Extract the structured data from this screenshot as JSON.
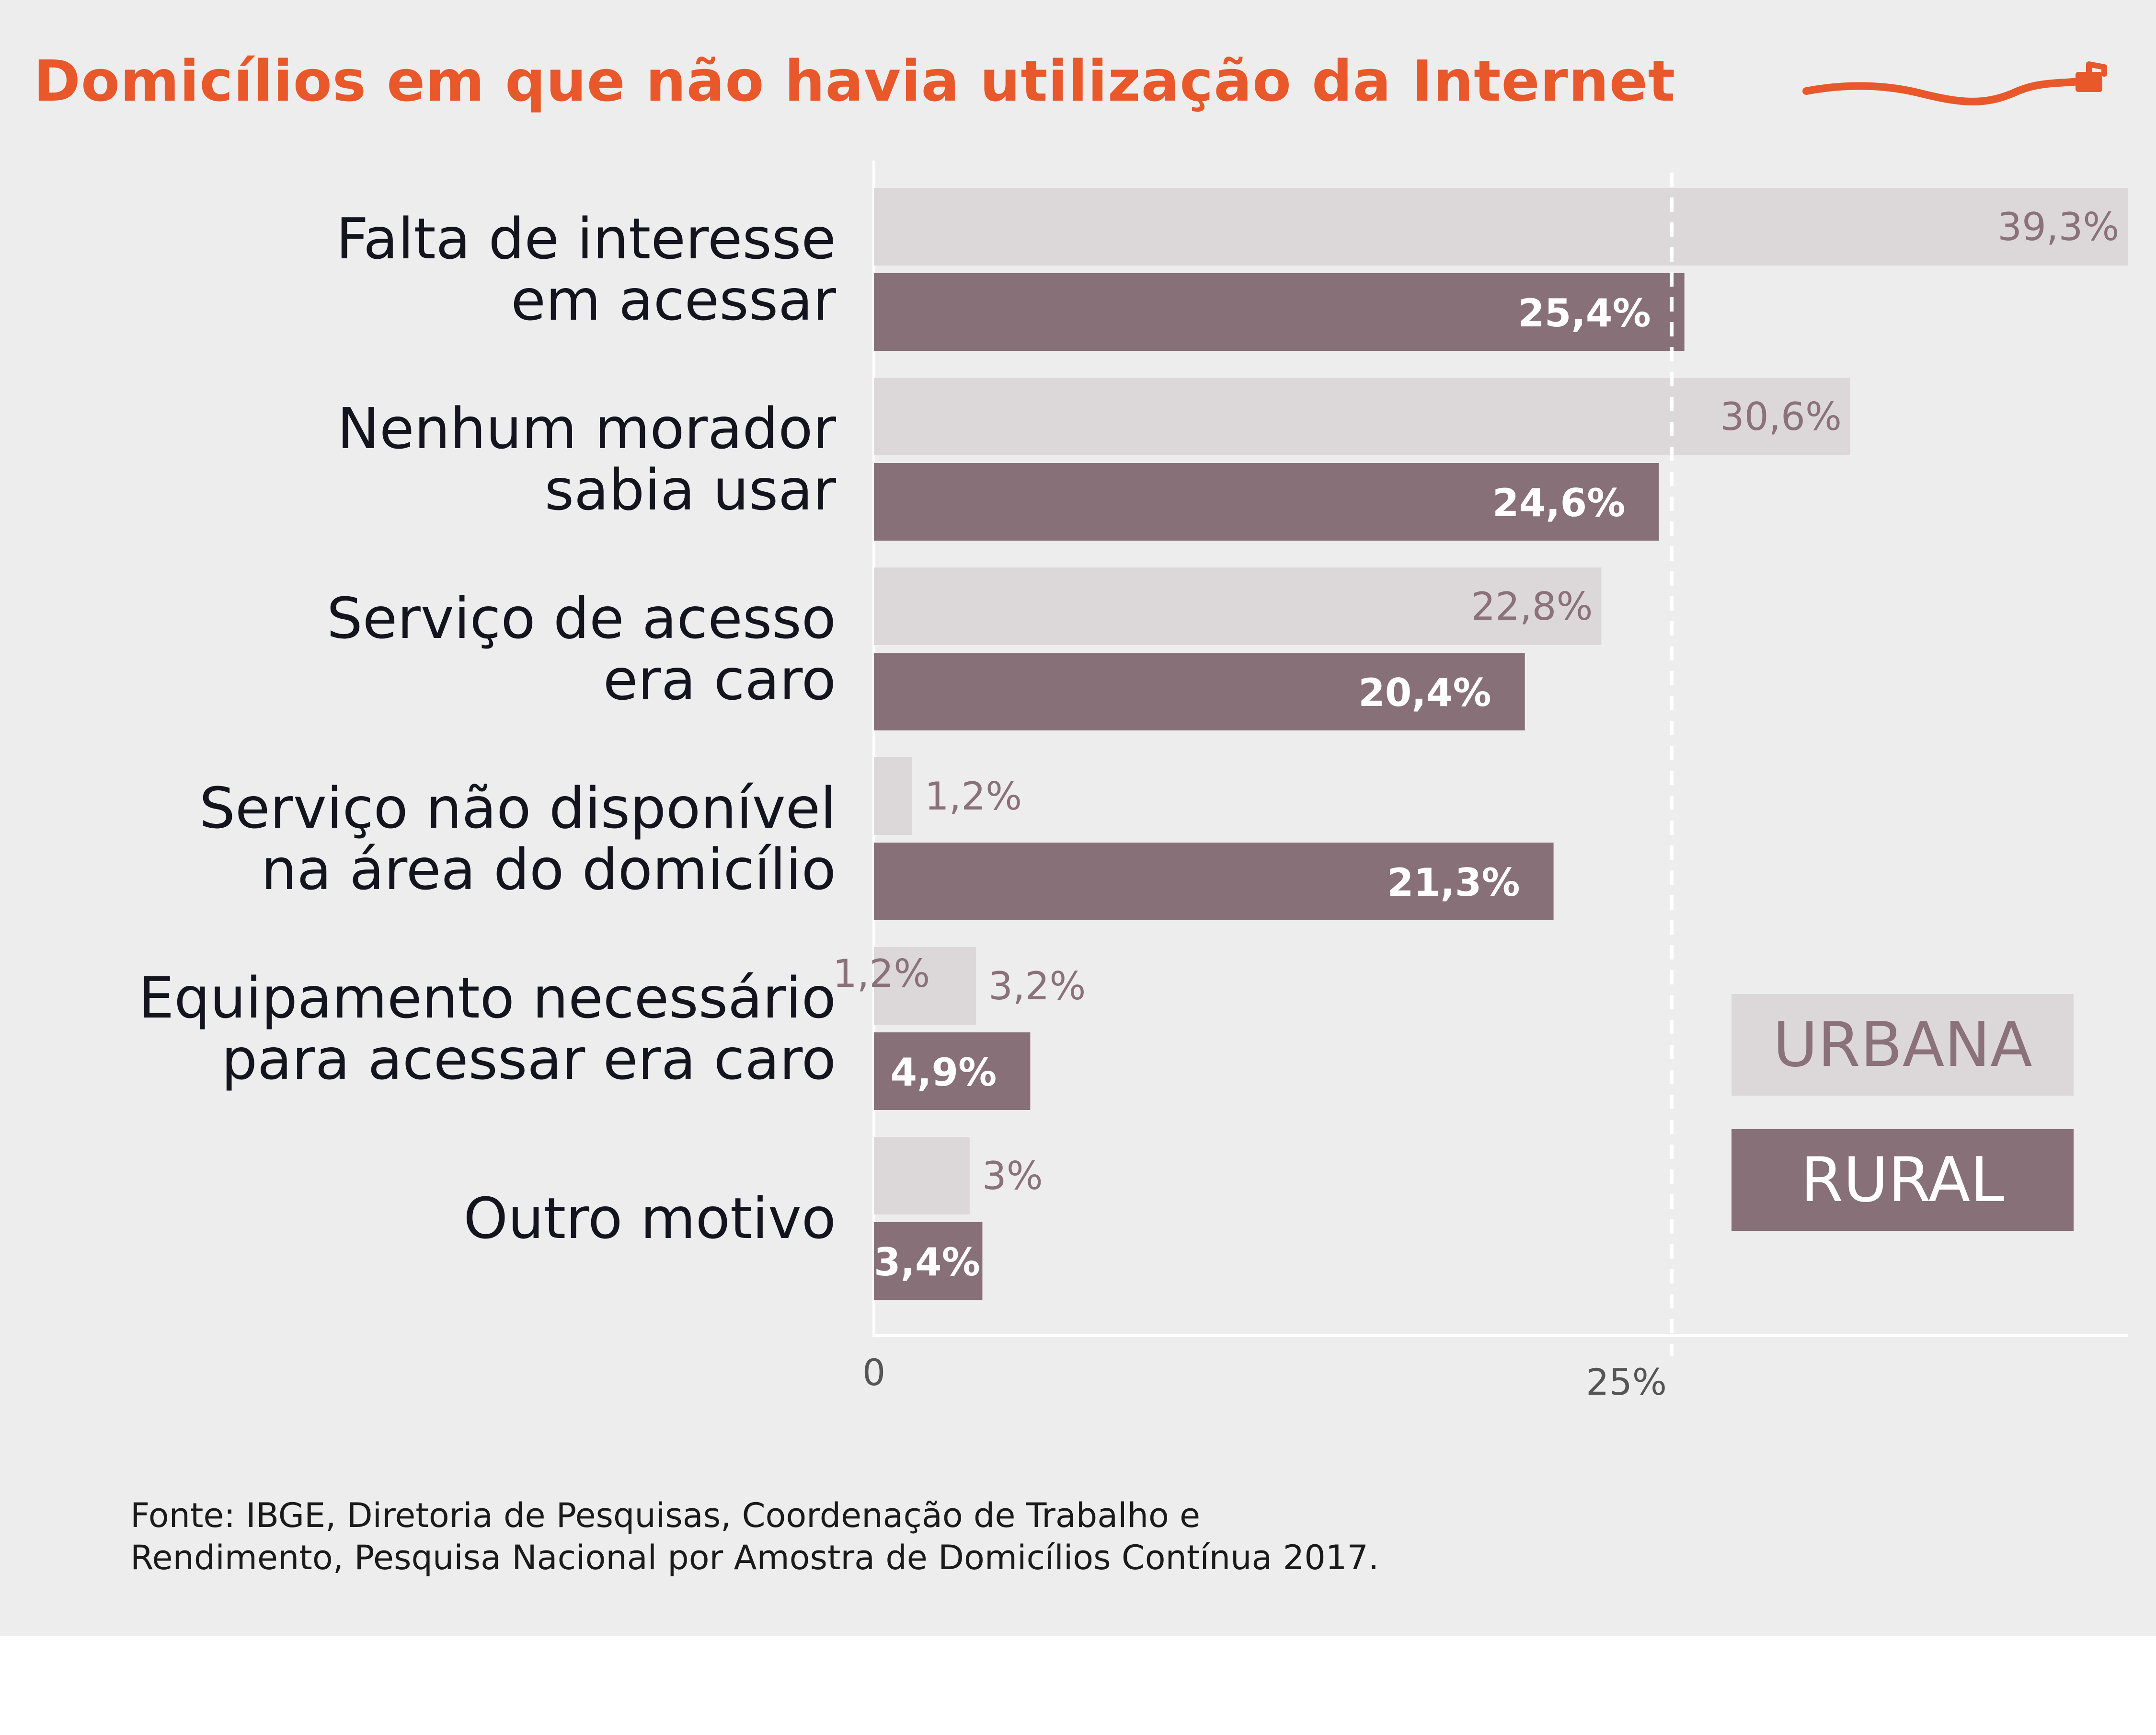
{
  "colors": {
    "background": "#eeedee",
    "title": "#e8582a",
    "urbana": "#dcd8d9",
    "rural": "#887078",
    "urbana_label": "#8a717a",
    "rural_label": "#ffffff",
    "axis_text": "#555555",
    "category_text": "#14141f"
  },
  "header": {
    "title": "Domicílios em que não havia utilização da Internet"
  },
  "legend": {
    "urbana": "URBANA",
    "rural": "RURAL"
  },
  "source": {
    "line1": "Fonte: IBGE, Diretoria de Pesquisas, Coordenação de Trabalho e",
    "line2": "Rendimento, Pesquisa Nacional por Amostra de Domicílios Contínua 2017."
  },
  "chart_data": {
    "type": "bar",
    "orientation": "horizontal",
    "categories": [
      [
        "Falta de interesse",
        "em acessar"
      ],
      [
        "Nenhum morador",
        "sabia usar"
      ],
      [
        "Serviço de acesso",
        "era caro"
      ],
      [
        "Serviço não disponível",
        "na área do domicílio"
      ],
      [
        "Equipamento necessário",
        "para acessar era caro"
      ],
      [
        "Outro motivo"
      ]
    ],
    "series": [
      {
        "name": "URBANA",
        "values": [
          39.3,
          30.6,
          22.8,
          1.2,
          3.2,
          3
        ],
        "labels": [
          "39,3%",
          "30,6%",
          "22,8%",
          "1,2%",
          "3,2%",
          "3%"
        ]
      },
      {
        "name": "RURAL",
        "values": [
          25.4,
          24.6,
          20.4,
          21.3,
          4.9,
          3.4
        ],
        "labels": [
          "25,4%",
          "24,6%",
          "20,4%",
          "21,3%",
          "4,9%",
          "3,4%"
        ]
      }
    ],
    "extra_labels": [
      {
        "text": "1,2%",
        "value": 1.2,
        "category": 4
      }
    ],
    "x_ticks": [
      0,
      25
    ],
    "x_tick_labels": [
      "0",
      "25%"
    ],
    "reference_line": 25,
    "xlim": [
      0,
      39.3
    ],
    "legend_position": "right",
    "grid": false
  }
}
